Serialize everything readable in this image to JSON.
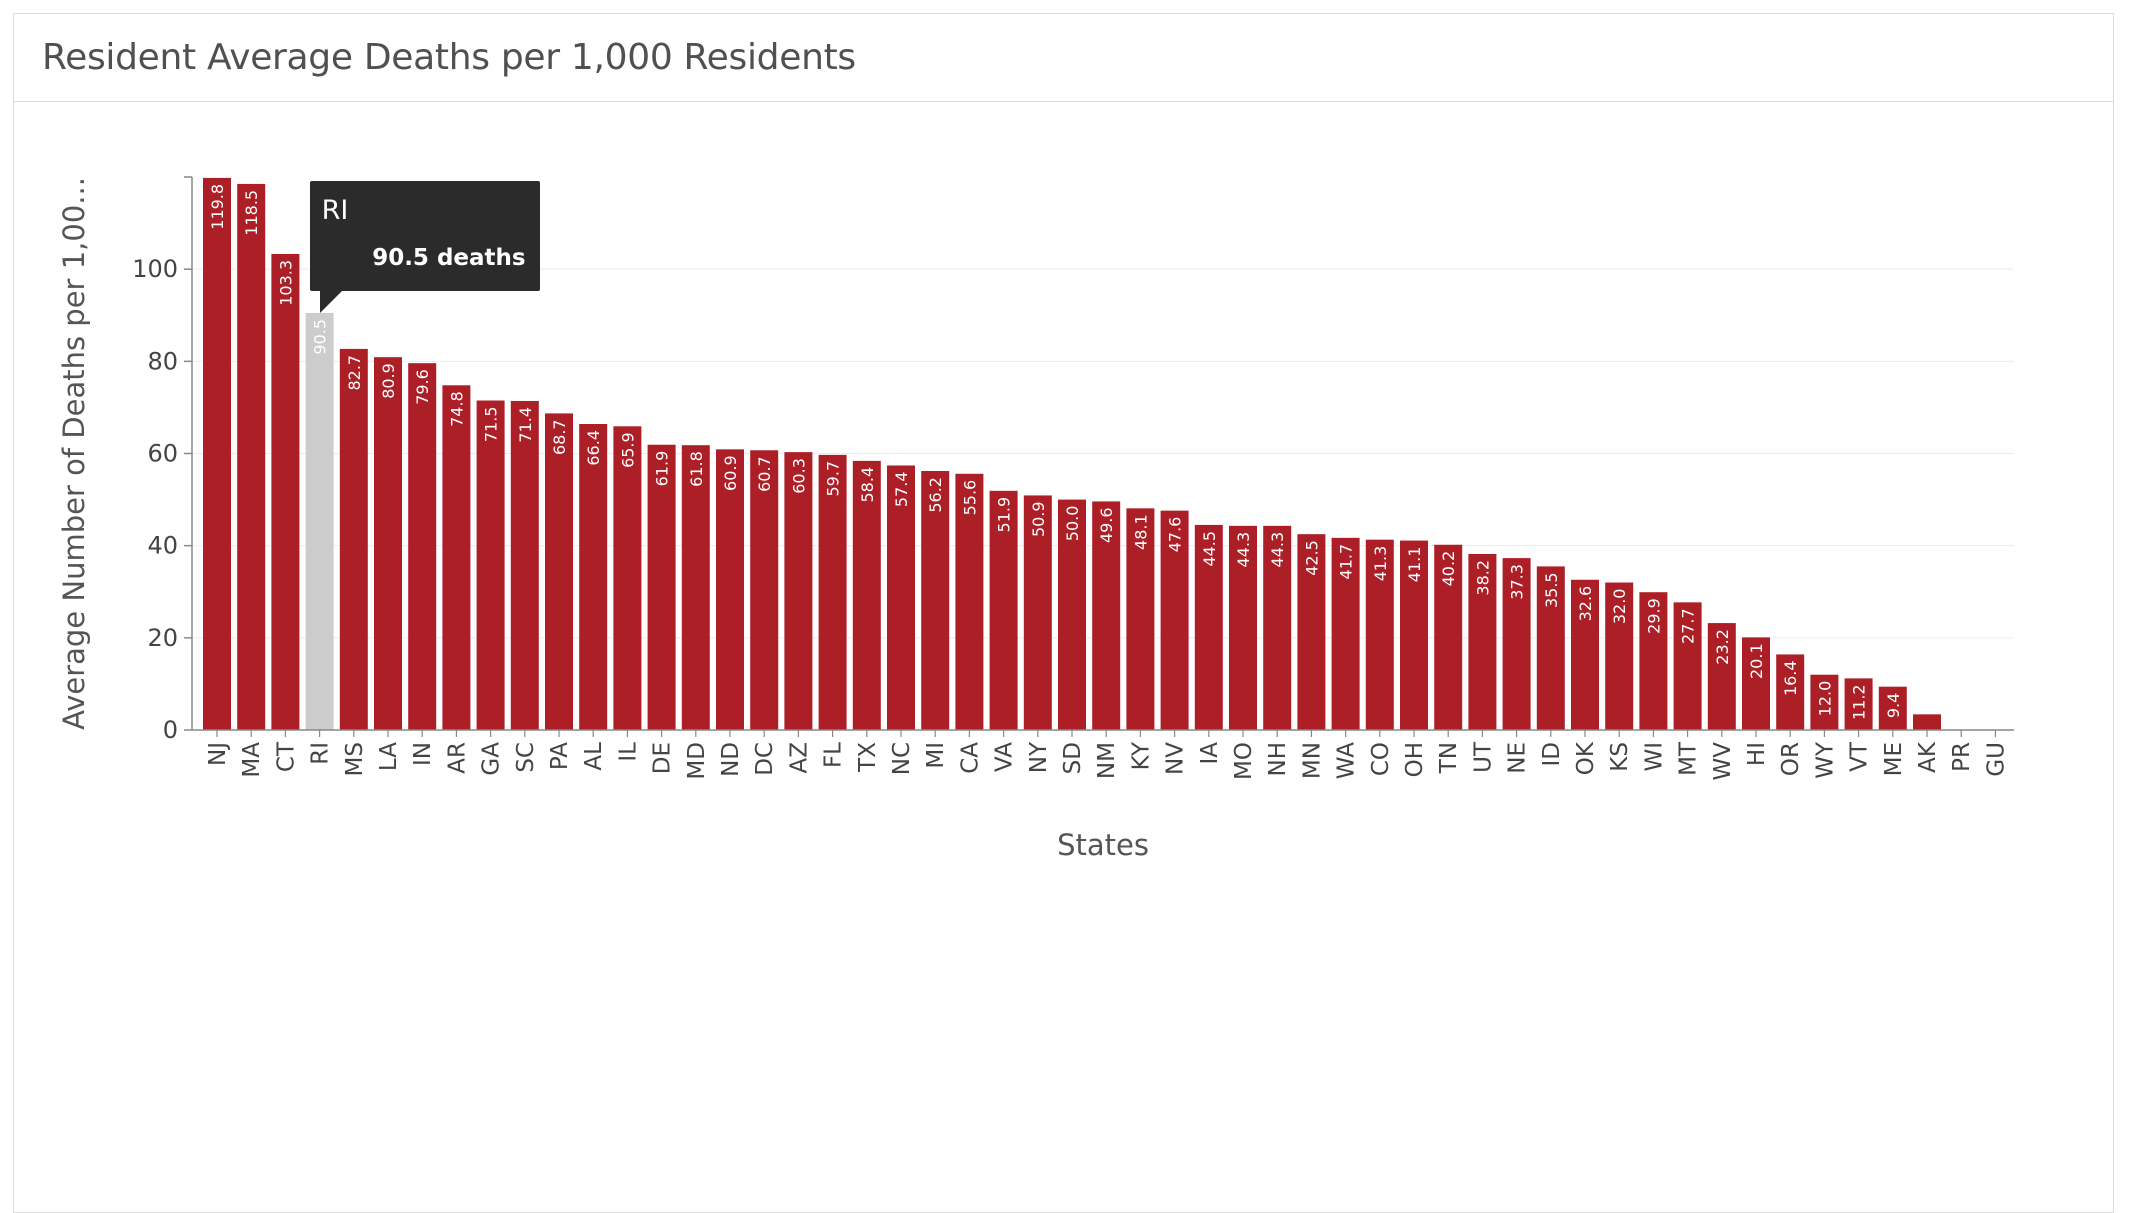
{
  "panel": {
    "title": "Resident Average Deaths per 1,000 Residents"
  },
  "tooltip": {
    "state": "RI",
    "value_text": "90.5 deaths"
  },
  "chart_data": {
    "type": "bar",
    "title": "Resident Average Deaths per 1,000 Residents",
    "xlabel": "States",
    "ylabel": "Average Number of Deaths per 1,00...",
    "ylim": [
      0,
      120
    ],
    "yticks": [
      0,
      20,
      40,
      60,
      80,
      100
    ],
    "grid": true,
    "bar_color": "#ac1f27",
    "highlight_color": "#cccccc",
    "highlighted_category": "RI",
    "categories": [
      "NJ",
      "MA",
      "CT",
      "RI",
      "MS",
      "LA",
      "IN",
      "AR",
      "GA",
      "SC",
      "PA",
      "AL",
      "IL",
      "DE",
      "MD",
      "ND",
      "DC",
      "AZ",
      "FL",
      "TX",
      "NC",
      "MI",
      "CA",
      "VA",
      "NY",
      "SD",
      "NM",
      "KY",
      "NV",
      "IA",
      "MO",
      "NH",
      "MN",
      "WA",
      "CO",
      "OH",
      "TN",
      "UT",
      "NE",
      "ID",
      "OK",
      "KS",
      "WI",
      "MT",
      "WV",
      "HI",
      "OR",
      "WY",
      "VT",
      "ME",
      "AK",
      "PR",
      "GU"
    ],
    "values": [
      119.8,
      118.5,
      103.3,
      90.5,
      82.7,
      80.9,
      79.6,
      74.8,
      71.5,
      71.4,
      68.7,
      66.4,
      65.9,
      61.9,
      61.8,
      60.9,
      60.7,
      60.3,
      59.7,
      58.4,
      57.4,
      56.2,
      55.6,
      51.9,
      50.9,
      50.0,
      49.6,
      48.1,
      47.6,
      44.5,
      44.3,
      44.3,
      42.5,
      41.7,
      41.3,
      41.1,
      40.2,
      38.2,
      37.3,
      35.5,
      32.6,
      32.0,
      29.9,
      27.7,
      23.2,
      20.1,
      16.4,
      12.0,
      11.2,
      9.4,
      3.4,
      0,
      0
    ],
    "labels": [
      "119.8",
      "118.5",
      "103.3",
      "90.5",
      "82.7",
      "80.9",
      "79.6",
      "74.8",
      "71.5",
      "71.4",
      "68.7",
      "66.4",
      "65.9",
      "61.9",
      "61.8",
      "60.9",
      "60.7",
      "60.3",
      "59.7",
      "58.4",
      "57.4",
      "56.2",
      "55.6",
      "51.9",
      "50.9",
      "50.0",
      "49.6",
      "48.1",
      "47.6",
      "44.5",
      "44.3",
      "44.3",
      "42.5",
      "41.7",
      "41.3",
      "41.1",
      "40.2",
      "38.2",
      "37.3",
      "35.5",
      "32.6",
      "32.0",
      "29.9",
      "27.7",
      "23.2",
      "20.1",
      "16.4",
      "12.0",
      "11.2",
      "9.4",
      "",
      "",
      ""
    ]
  }
}
